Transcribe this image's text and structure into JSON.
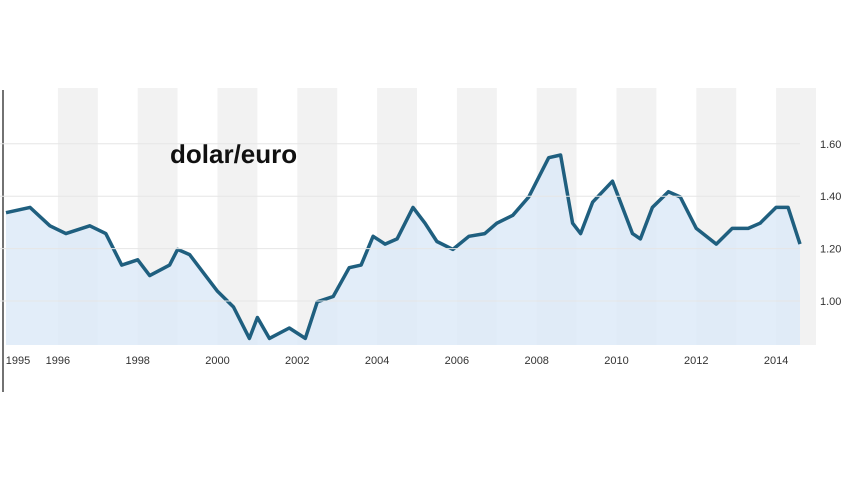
{
  "chart_data": {
    "type": "area",
    "title": "dolar/euro",
    "xlabel": "",
    "ylabel": "",
    "x_ticks": [
      "1995",
      "1996",
      "1998",
      "2000",
      "2002",
      "2004",
      "2006",
      "2008",
      "2010",
      "2012",
      "2014"
    ],
    "x_tick_values": [
      1995,
      1996,
      1998,
      2000,
      2002,
      2004,
      2006,
      2008,
      2010,
      2012,
      2014
    ],
    "y_ticks": [
      "1.00",
      "1.20",
      "1.40",
      "1.60"
    ],
    "y_tick_values": [
      1.0,
      1.2,
      1.4,
      1.6
    ],
    "xlim": [
      1994.6,
      2014.8
    ],
    "ylim": [
      0.8,
      1.75
    ],
    "y_axis_side": "right",
    "grid": "alternating year bands",
    "colors": {
      "line": "#1f5f7f",
      "fill": "#dbe9f7",
      "band": "#f2f2f2"
    },
    "x": [
      1994.7,
      1995.0,
      1995.3,
      1995.8,
      1996.2,
      1996.8,
      1997.2,
      1997.6,
      1998.0,
      1998.3,
      1998.8,
      1999.0,
      1999.3,
      1999.7,
      2000.0,
      2000.4,
      2000.8,
      2001.0,
      2001.3,
      2001.8,
      2002.2,
      2002.5,
      2002.9,
      2003.3,
      2003.6,
      2003.9,
      2004.2,
      2004.5,
      2004.9,
      2005.2,
      2005.5,
      2005.9,
      2006.3,
      2006.7,
      2007.0,
      2007.4,
      2007.8,
      2008.3,
      2008.6,
      2008.9,
      2009.1,
      2009.4,
      2009.9,
      2010.4,
      2010.6,
      2010.9,
      2011.3,
      2011.6,
      2012.0,
      2012.5,
      2012.9,
      2013.3,
      2013.6,
      2014.0,
      2014.3,
      2014.6
    ],
    "values": [
      1.36,
      1.37,
      1.38,
      1.31,
      1.28,
      1.31,
      1.28,
      1.16,
      1.18,
      1.12,
      1.16,
      1.22,
      1.2,
      1.12,
      1.06,
      1.0,
      0.88,
      0.96,
      0.88,
      0.92,
      0.88,
      1.02,
      1.04,
      1.15,
      1.16,
      1.27,
      1.24,
      1.26,
      1.38,
      1.32,
      1.25,
      1.22,
      1.27,
      1.28,
      1.32,
      1.35,
      1.42,
      1.57,
      1.58,
      1.32,
      1.28,
      1.4,
      1.48,
      1.28,
      1.26,
      1.38,
      1.44,
      1.42,
      1.3,
      1.24,
      1.3,
      1.3,
      1.32,
      1.38,
      1.38,
      1.24
    ]
  }
}
